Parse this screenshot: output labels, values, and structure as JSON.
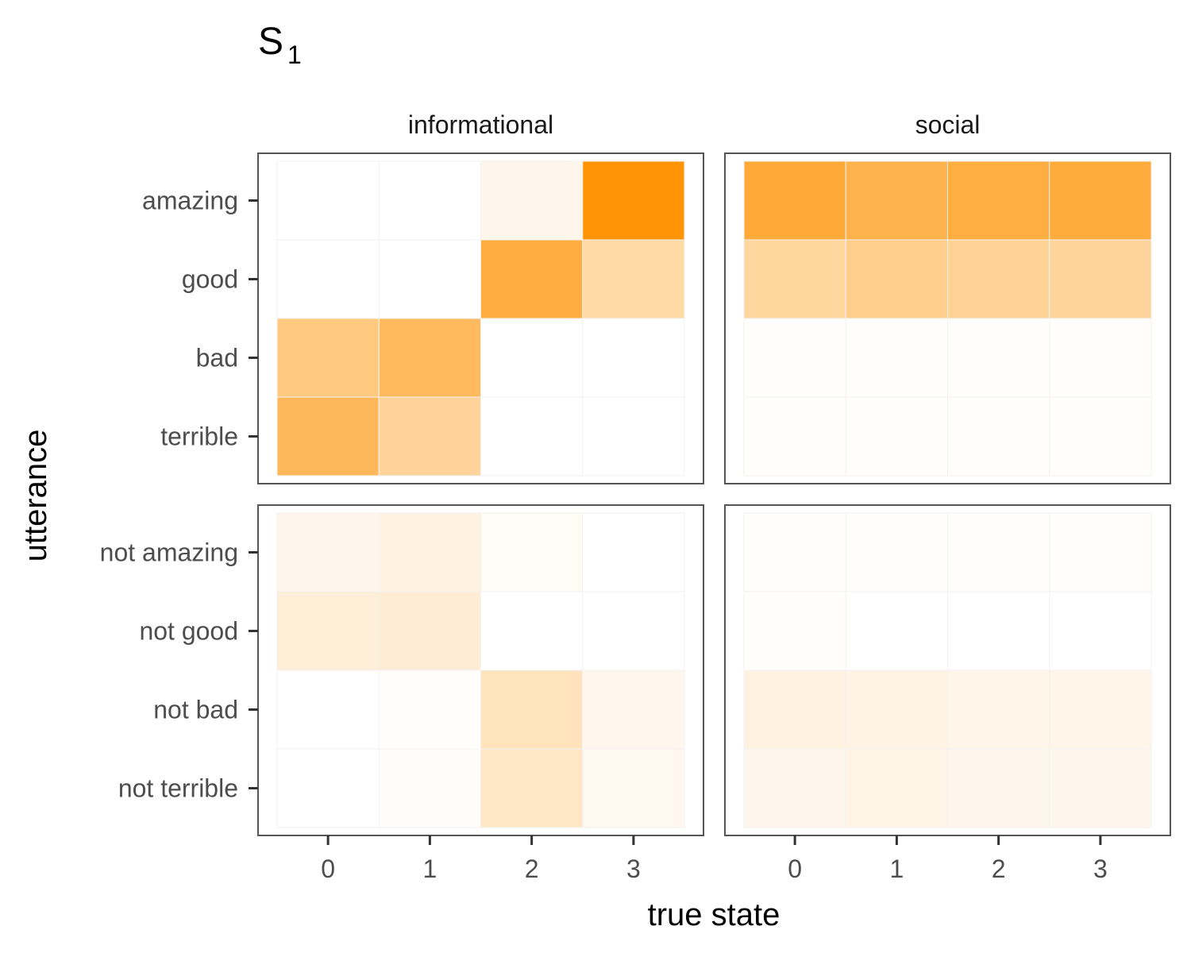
{
  "chart_data": {
    "type": "heatmap",
    "title": "S",
    "title_subscript": "1",
    "xlabel": "true state",
    "ylabel": "utterance",
    "x": [
      "0",
      "1",
      "2",
      "3"
    ],
    "facet_columns": [
      "informational",
      "social"
    ],
    "facet_rows": [
      [
        "amazing",
        "good",
        "bad",
        "terrible"
      ],
      [
        "not amazing",
        "not good",
        "not bad",
        "not terrible"
      ]
    ],
    "color_low": "#ffffff",
    "color_high": "#ff9200",
    "value_range": [
      0,
      1
    ],
    "panels": [
      {
        "column": "informational",
        "rows": [
          "amazing",
          "good",
          "bad",
          "terrible"
        ],
        "values": [
          [
            0.0,
            0.0,
            0.08,
            0.98
          ],
          [
            0.0,
            0.0,
            0.75,
            0.35
          ],
          [
            0.5,
            0.63,
            0.0,
            0.0
          ],
          [
            0.65,
            0.4,
            0.0,
            0.0
          ]
        ]
      },
      {
        "column": "social",
        "rows": [
          "amazing",
          "good",
          "bad",
          "terrible"
        ],
        "values": [
          [
            0.78,
            0.7,
            0.74,
            0.76
          ],
          [
            0.38,
            0.45,
            0.41,
            0.39
          ],
          [
            0.01,
            0.01,
            0.01,
            0.01
          ],
          [
            0.01,
            0.01,
            0.01,
            0.01
          ]
        ]
      },
      {
        "column": "informational",
        "rows": [
          "not amazing",
          "not good",
          "not bad",
          "not terrible"
        ],
        "values": [
          [
            0.08,
            0.12,
            0.04,
            0.0
          ],
          [
            0.15,
            0.17,
            0.0,
            0.0
          ],
          [
            0.0,
            0.01,
            0.26,
            0.07
          ],
          [
            0.0,
            0.02,
            0.23,
            0.06
          ]
        ]
      },
      {
        "column": "social",
        "rows": [
          "not amazing",
          "not good",
          "not bad",
          "not terrible"
        ],
        "values": [
          [
            0.01,
            0.01,
            0.01,
            0.01
          ],
          [
            0.01,
            0.0,
            0.0,
            0.0
          ],
          [
            0.12,
            0.11,
            0.09,
            0.09
          ],
          [
            0.08,
            0.1,
            0.08,
            0.08
          ]
        ]
      }
    ]
  }
}
